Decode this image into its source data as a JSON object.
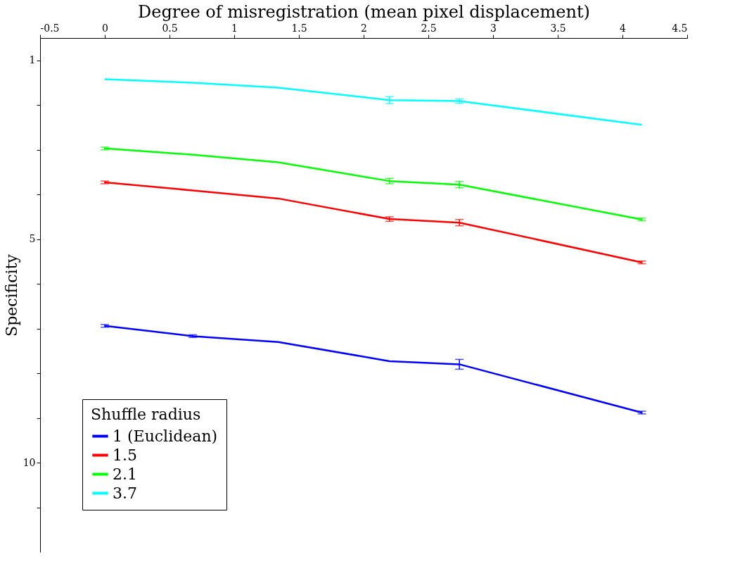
{
  "chart_data": {
    "type": "line",
    "xlabel": "Degree of misregistration (mean pixel displacement)",
    "ylabel": "Specificity",
    "legend_title": "Shuffle radius",
    "legend": "bottom left",
    "grid": false,
    "marker": "none",
    "line_style": "solid",
    "x": [
      0,
      0.68,
      1.34,
      2.2,
      2.74,
      4.15
    ],
    "xlim": [
      -0.5,
      4.5
    ],
    "xticks": [
      -0.5,
      0,
      0.5,
      1,
      1.5,
      2,
      2.5,
      3,
      3.5,
      4,
      4.5
    ],
    "ylim": [
      12,
      0.5
    ],
    "yticks": [
      1,
      {
        "value": 2,
        "label": null
      },
      {
        "value": 3,
        "label": null
      },
      {
        "value": 4,
        "label": null
      },
      5,
      {
        "value": 6,
        "label": null
      },
      {
        "value": 7,
        "label": null
      },
      {
        "value": 8,
        "label": null
      },
      {
        "value": 9,
        "label": null
      },
      10,
      {
        "value": 11,
        "label": null
      }
    ],
    "series": [
      {
        "name": "1 (Euclidean)",
        "color": "#0000ff",
        "values": [
          6.94,
          7.17,
          7.3,
          7.73,
          7.8,
          8.88
        ],
        "errors": [
          0.03,
          0.03,
          null,
          null,
          0.11,
          0.03
        ]
      },
      {
        "name": "1.5",
        "color": "#ff0000",
        "values": [
          3.73,
          3.91,
          4.09,
          4.55,
          4.63,
          5.52
        ],
        "errors": [
          0.03,
          null,
          null,
          0.05,
          0.07,
          0.03
        ]
      },
      {
        "name": "2.1",
        "color": "#00ff00",
        "values": [
          2.97,
          3.11,
          3.28,
          3.7,
          3.78,
          4.56
        ],
        "errors": [
          0.03,
          null,
          null,
          0.06,
          0.07,
          0.03
        ]
      },
      {
        "name": "3.7",
        "color": "#00ffff",
        "values": [
          1.42,
          1.5,
          1.61,
          1.89,
          1.91,
          2.44
        ],
        "errors": [
          null,
          null,
          null,
          0.08,
          0.05,
          null
        ]
      }
    ]
  }
}
